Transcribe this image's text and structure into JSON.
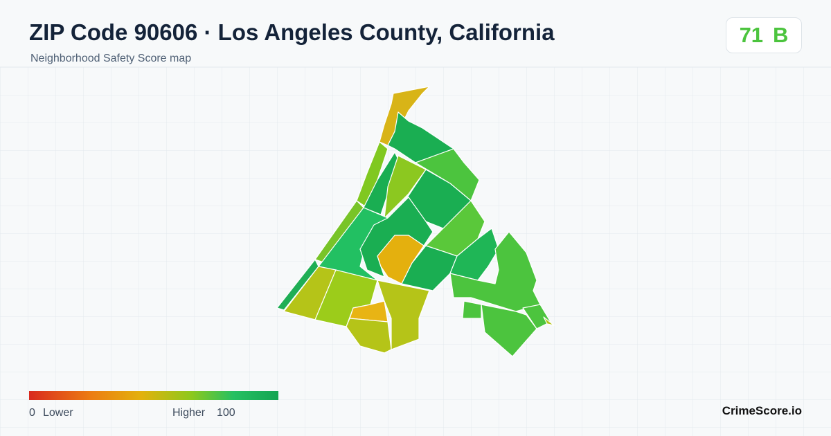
{
  "header": {
    "title": "ZIP Code 90606 · Los Angeles County, California",
    "subtitle": "Neighborhood Safety Score map"
  },
  "score": {
    "value": 71,
    "grade": "B"
  },
  "legend": {
    "min": 0,
    "min_label": "Lower",
    "max_label": "Higher",
    "max": 100
  },
  "brand": "CrimeScore.io"
}
